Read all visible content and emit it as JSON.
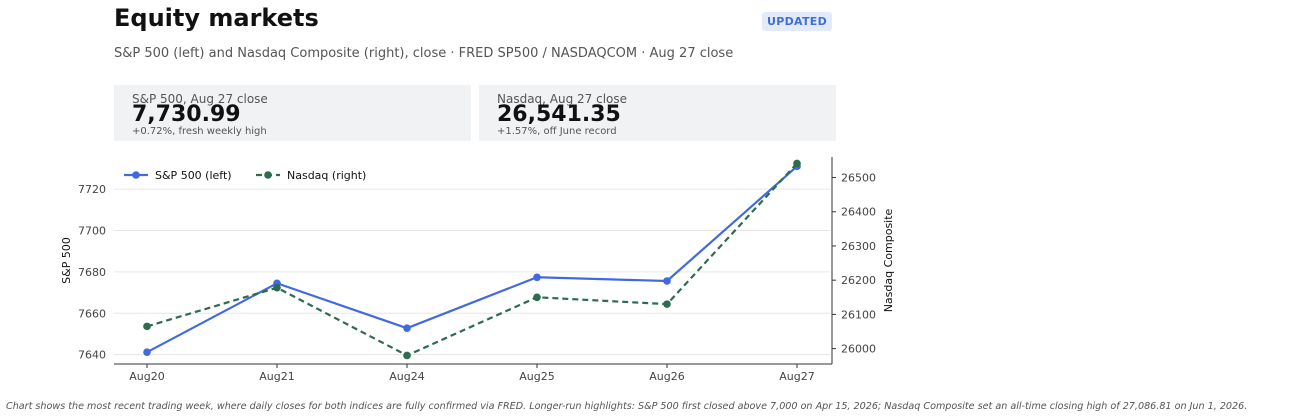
{
  "header": {
    "title": "Equity markets",
    "badge": "UPDATED",
    "subtitle": "S&P 500 (left) and Nasdaq Composite (right), close · FRED SP500 / NASDAQCOM · Aug 27 close"
  },
  "cards": [
    {
      "label": "S&P 500, Aug 27 close",
      "value": "7,730.99",
      "change": "+0.72%, fresh weekly high"
    },
    {
      "label": "Nasdaq, Aug 27 close",
      "value": "26,541.35",
      "change": "+1.57%, off June record"
    }
  ],
  "chart_data": {
    "type": "line",
    "categories": [
      "Aug20",
      "Aug21",
      "Aug24",
      "Aug25",
      "Aug26",
      "Aug27"
    ],
    "series": [
      {
        "name": "S&P 500 (left)",
        "axis": "left",
        "color": "#4169e1",
        "style": "solid",
        "values": [
          7641.2,
          7674.5,
          7652.8,
          7677.4,
          7675.6,
          7730.99
        ]
      },
      {
        "name": "Nasdaq (right)",
        "axis": "right",
        "color": "#2e6b4f",
        "style": "dashed",
        "values": [
          26065,
          26178,
          25980,
          26150,
          26130,
          26541.35
        ]
      }
    ],
    "ylabel_left": "S&P 500",
    "ylabel_right": "Nasdaq Composite",
    "yticks_left": [
      7640,
      7660,
      7680,
      7700,
      7720
    ],
    "yticks_right": [
      26000,
      26100,
      26200,
      26300,
      26400,
      26500
    ],
    "ylim_left": [
      7635.5,
      7735.5
    ],
    "ylim_right": [
      25955,
      26560
    ],
    "grid": "horizontal",
    "legend": "top-left"
  },
  "footnote": "Chart shows the most recent trading week, where daily closes for both indices are fully confirmed via FRED. Longer-run highlights: S&P 500 first closed above 7,000 on Apr 15, 2026; Nasdaq Composite set an all-time closing high of 27,086.81 on Jun 1, 2026."
}
